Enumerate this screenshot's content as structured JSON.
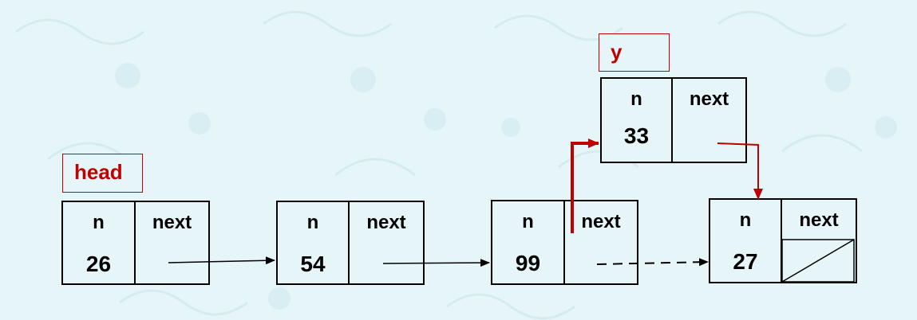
{
  "nodes": [
    {
      "n_label": "n",
      "next_label": "next",
      "value": "26"
    },
    {
      "n_label": "n",
      "next_label": "next",
      "value": "54"
    },
    {
      "n_label": "n",
      "next_label": "next",
      "value": "99"
    },
    {
      "n_label": "n",
      "next_label": "next",
      "value": "27"
    }
  ],
  "inserted": {
    "n_label": "n",
    "next_label": "next",
    "value": "33"
  },
  "pointers": {
    "head": "head",
    "y": "y"
  },
  "colors": {
    "background": "#e6f6f8",
    "accent": "#c00000",
    "line": "#000000"
  }
}
